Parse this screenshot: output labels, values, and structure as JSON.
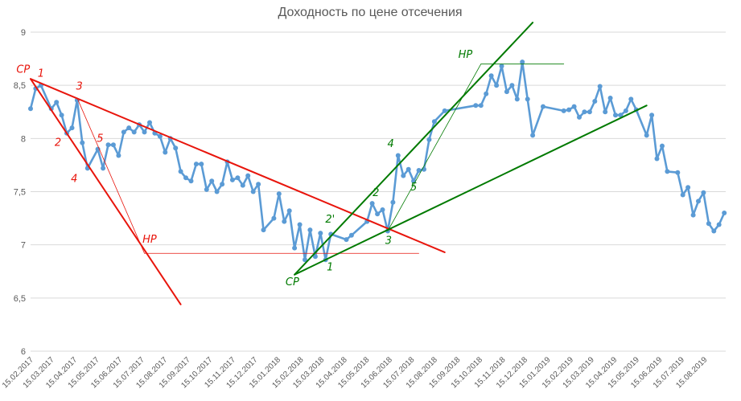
{
  "chart_data": {
    "type": "line",
    "title": "Доходность по цене отсечения",
    "xlabel": "",
    "ylabel": "",
    "ylim": [
      6,
      9
    ],
    "yticks": [
      "6",
      "6,5",
      "7",
      "7,5",
      "8",
      "8,5",
      "9"
    ],
    "grid": "horizontal",
    "legend": "none",
    "xtick_labels": [
      "15.02.2017",
      "15.03.2017",
      "15.04.2017",
      "15.05.2017",
      "15.06.2017",
      "15.07.2017",
      "15.08.2017",
      "15.09.2017",
      "15.10.2017",
      "15.11.2017",
      "15.12.2017",
      "15.01.2018",
      "15.02.2018",
      "15.03.2018",
      "15.04.2018",
      "15.05.2018",
      "15.06.2018",
      "15.07.2018",
      "15.08.2018",
      "15.09.2018",
      "15.10.2018",
      "15.11.2018",
      "15.12.2018",
      "15.01.2019",
      "15.02.2019",
      "15.03.2019",
      "15.04.2019",
      "15.05.2019",
      "15.06.2019",
      "15.07.2019",
      "15.08.2019"
    ],
    "series": [
      {
        "color": "#5b9bd5",
        "points": [
          [
            "2017-02-15",
            8.28
          ],
          [
            "2017-02-22",
            8.47
          ],
          [
            "2017-03-01",
            8.5
          ],
          [
            "2017-03-15",
            8.28
          ],
          [
            "2017-03-22",
            8.34
          ],
          [
            "2017-03-29",
            8.22
          ],
          [
            "2017-04-05",
            8.05
          ],
          [
            "2017-04-12",
            8.1
          ],
          [
            "2017-04-19",
            8.36
          ],
          [
            "2017-04-26",
            7.96
          ],
          [
            "2017-05-03",
            7.72
          ],
          [
            "2017-05-17",
            7.9
          ],
          [
            "2017-05-24",
            7.72
          ],
          [
            "2017-05-31",
            7.94
          ],
          [
            "2017-06-07",
            7.94
          ],
          [
            "2017-06-14",
            7.84
          ],
          [
            "2017-06-21",
            8.06
          ],
          [
            "2017-06-28",
            8.1
          ],
          [
            "2017-07-05",
            8.06
          ],
          [
            "2017-07-12",
            8.13
          ],
          [
            "2017-07-19",
            8.06
          ],
          [
            "2017-07-26",
            8.15
          ],
          [
            "2017-08-02",
            8.05
          ],
          [
            "2017-08-09",
            8.02
          ],
          [
            "2017-08-16",
            7.87
          ],
          [
            "2017-08-23",
            8.0
          ],
          [
            "2017-08-30",
            7.91
          ],
          [
            "2017-09-06",
            7.69
          ],
          [
            "2017-09-13",
            7.63
          ],
          [
            "2017-09-20",
            7.6
          ],
          [
            "2017-09-27",
            7.76
          ],
          [
            "2017-10-04",
            7.76
          ],
          [
            "2017-10-11",
            7.52
          ],
          [
            "2017-10-18",
            7.6
          ],
          [
            "2017-10-25",
            7.5
          ],
          [
            "2017-11-01",
            7.57
          ],
          [
            "2017-11-08",
            7.78
          ],
          [
            "2017-11-15",
            7.61
          ],
          [
            "2017-11-22",
            7.63
          ],
          [
            "2017-11-29",
            7.56
          ],
          [
            "2017-12-06",
            7.65
          ],
          [
            "2017-12-13",
            7.5
          ],
          [
            "2017-12-20",
            7.57
          ],
          [
            "2017-12-27",
            7.14
          ],
          [
            "2018-01-10",
            7.25
          ],
          [
            "2018-01-17",
            7.48
          ],
          [
            "2018-01-24",
            7.22
          ],
          [
            "2018-01-31",
            7.32
          ],
          [
            "2018-02-07",
            6.97
          ],
          [
            "2018-02-14",
            7.19
          ],
          [
            "2018-02-21",
            6.86
          ],
          [
            "2018-02-28",
            7.14
          ],
          [
            "2018-03-07",
            6.89
          ],
          [
            "2018-03-14",
            7.11
          ],
          [
            "2018-03-21",
            6.86
          ],
          [
            "2018-03-28",
            7.1
          ],
          [
            "2018-04-18",
            7.05
          ],
          [
            "2018-04-25",
            7.09
          ],
          [
            "2018-05-16",
            7.22
          ],
          [
            "2018-05-23",
            7.39
          ],
          [
            "2018-05-30",
            7.29
          ],
          [
            "2018-06-06",
            7.33
          ],
          [
            "2018-06-13",
            7.13
          ],
          [
            "2018-06-20",
            7.4
          ],
          [
            "2018-06-27",
            7.84
          ],
          [
            "2018-07-04",
            7.65
          ],
          [
            "2018-07-11",
            7.71
          ],
          [
            "2018-07-18",
            7.6
          ],
          [
            "2018-07-25",
            7.7
          ],
          [
            "2018-08-01",
            7.71
          ],
          [
            "2018-08-08",
            7.99
          ],
          [
            "2018-08-15",
            8.16
          ],
          [
            "2018-08-29",
            8.26
          ],
          [
            "2018-10-10",
            8.31
          ],
          [
            "2018-10-17",
            8.31
          ],
          [
            "2018-10-24",
            8.42
          ],
          [
            "2018-10-31",
            8.59
          ],
          [
            "2018-11-07",
            8.5
          ],
          [
            "2018-11-14",
            8.68
          ],
          [
            "2018-11-21",
            8.44
          ],
          [
            "2018-11-28",
            8.5
          ],
          [
            "2018-12-05",
            8.37
          ],
          [
            "2018-12-12",
            8.72
          ],
          [
            "2018-12-19",
            8.37
          ],
          [
            "2018-12-26",
            8.03
          ],
          [
            "2019-01-09",
            8.3
          ],
          [
            "2019-02-06",
            8.26
          ],
          [
            "2019-02-13",
            8.27
          ],
          [
            "2019-02-20",
            8.3
          ],
          [
            "2019-02-27",
            8.2
          ],
          [
            "2019-03-06",
            8.25
          ],
          [
            "2019-03-13",
            8.25
          ],
          [
            "2019-03-20",
            8.35
          ],
          [
            "2019-03-27",
            8.49
          ],
          [
            "2019-04-03",
            8.25
          ],
          [
            "2019-04-10",
            8.38
          ],
          [
            "2019-04-17",
            8.22
          ],
          [
            "2019-04-24",
            8.22
          ],
          [
            "2019-05-01",
            8.26
          ],
          [
            "2019-05-08",
            8.37
          ],
          [
            "2019-05-15",
            8.27
          ],
          [
            "2019-05-29",
            8.03
          ],
          [
            "2019-06-05",
            8.22
          ],
          [
            "2019-06-12",
            7.81
          ],
          [
            "2019-06-19",
            7.93
          ],
          [
            "2019-06-26",
            7.69
          ],
          [
            "2019-07-10",
            7.68
          ],
          [
            "2019-07-17",
            7.47
          ],
          [
            "2019-07-24",
            7.54
          ],
          [
            "2019-07-31",
            7.28
          ],
          [
            "2019-08-07",
            7.41
          ],
          [
            "2019-08-14",
            7.49
          ],
          [
            "2019-08-21",
            7.2
          ],
          [
            "2019-08-28",
            7.13
          ],
          [
            "2019-09-04",
            7.19
          ],
          [
            "2019-09-11",
            7.3
          ]
        ]
      }
    ],
    "annotations": {
      "lines": [
        {
          "color": "#e8150c",
          "width": 2,
          "from": [
            "2017-02-15",
            8.56
          ],
          "to": [
            "2017-09-06",
            6.44
          ]
        },
        {
          "color": "#e8150c",
          "width": 2,
          "from": [
            "2017-02-15",
            8.56
          ],
          "to": [
            "2018-08-29",
            6.93
          ]
        },
        {
          "color": "#e8150c",
          "width": 0.8,
          "from": [
            "2017-04-19",
            8.38
          ],
          "to": [
            "2017-07-19",
            6.92
          ]
        },
        {
          "color": "#e8150c",
          "width": 0.8,
          "from": [
            "2017-07-19",
            6.92
          ],
          "to": [
            "2018-07-25",
            6.92
          ]
        },
        {
          "color": "#007a00",
          "width": 2,
          "from": [
            "2018-02-07",
            6.72
          ],
          "to": [
            "2018-12-26",
            9.09
          ]
        },
        {
          "color": "#007a00",
          "width": 2,
          "from": [
            "2018-02-07",
            6.72
          ],
          "to": [
            "2019-05-29",
            8.31
          ]
        },
        {
          "color": "#007a00",
          "width": 0.8,
          "from": [
            "2018-06-13",
            7.13
          ],
          "to": [
            "2018-10-17",
            8.7
          ]
        },
        {
          "color": "#007a00",
          "width": 0.8,
          "from": [
            "2018-10-17",
            8.7
          ],
          "to": [
            "2019-02-06",
            8.7
          ]
        }
      ],
      "labels": [
        {
          "text": "СР",
          "color": "#e8150c",
          "at": [
            "2017-02-05",
            8.62
          ]
        },
        {
          "text": "1",
          "color": "#e8150c",
          "at": [
            "2017-03-01",
            8.58
          ]
        },
        {
          "text": "3",
          "color": "#e8150c",
          "at": [
            "2017-04-22",
            8.46
          ]
        },
        {
          "text": "2",
          "color": "#e8150c",
          "at": [
            "2017-03-24",
            7.93
          ]
        },
        {
          "text": "5",
          "color": "#e8150c",
          "at": [
            "2017-05-20",
            7.97
          ]
        },
        {
          "text": "4",
          "color": "#e8150c",
          "at": [
            "2017-04-15",
            7.59
          ]
        },
        {
          "text": "НР",
          "color": "#e8150c",
          "at": [
            "2017-07-26",
            7.02
          ]
        },
        {
          "text": "2'",
          "color": "#007a00",
          "at": [
            "2018-03-27",
            7.21
          ]
        },
        {
          "text": "1",
          "color": "#007a00",
          "at": [
            "2018-03-27",
            6.76
          ]
        },
        {
          "text": "СР",
          "color": "#007a00",
          "at": [
            "2018-02-04",
            6.62
          ]
        },
        {
          "text": "2",
          "color": "#007a00",
          "at": [
            "2018-05-28",
            7.46
          ]
        },
        {
          "text": "3",
          "color": "#007a00",
          "at": [
            "2018-06-14",
            7.01
          ]
        },
        {
          "text": "4",
          "color": "#007a00",
          "at": [
            "2018-06-17",
            7.92
          ]
        },
        {
          "text": "5",
          "color": "#007a00",
          "at": [
            "2018-07-18",
            7.51
          ]
        },
        {
          "text": "НР",
          "color": "#007a00",
          "at": [
            "2018-09-26",
            8.76
          ]
        }
      ]
    }
  }
}
